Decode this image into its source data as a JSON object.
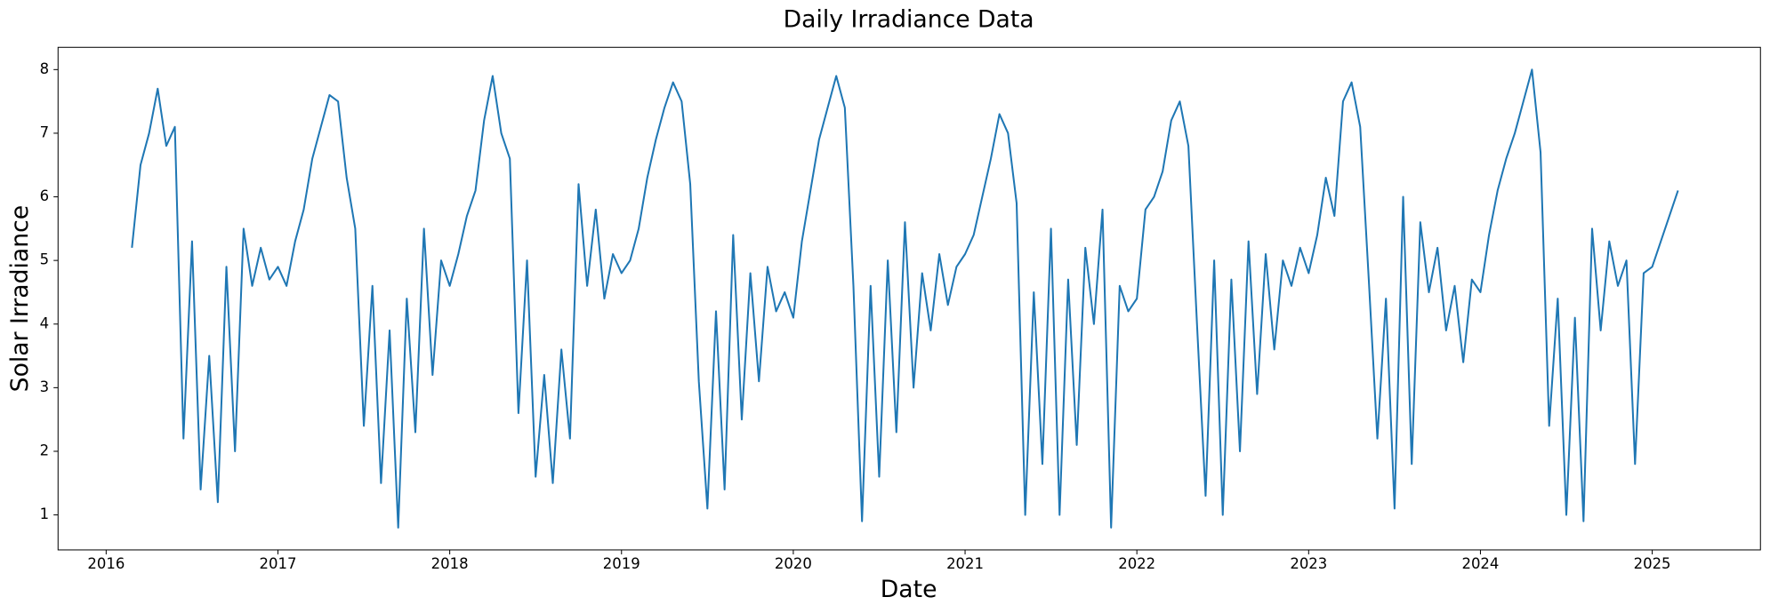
{
  "chart_data": {
    "type": "line",
    "title": "Daily Irradiance Data",
    "x_label": "Date",
    "y_label": "Solar Irradiance",
    "xlim": [
      2015.72,
      2025.63
    ],
    "ylim": [
      0.45,
      8.35
    ],
    "xticks": [
      2016,
      2017,
      2018,
      2019,
      2020,
      2021,
      2022,
      2023,
      2024,
      2025
    ],
    "yticks": [
      1,
      2,
      3,
      4,
      5,
      6,
      7,
      8
    ],
    "grid": false,
    "x": [
      2016.15,
      2016.2,
      2016.25,
      2016.3,
      2016.35,
      2016.4,
      2016.45,
      2016.5,
      2016.55,
      2016.6,
      2016.65,
      2016.7,
      2016.75,
      2016.8,
      2016.85,
      2016.9,
      2016.95,
      2017.0,
      2017.05,
      2017.1,
      2017.15,
      2017.2,
      2017.25,
      2017.3,
      2017.35,
      2017.4,
      2017.45,
      2017.5,
      2017.55,
      2017.6,
      2017.65,
      2017.7,
      2017.75,
      2017.8,
      2017.85,
      2017.9,
      2017.95,
      2018.0,
      2018.05,
      2018.1,
      2018.15,
      2018.2,
      2018.25,
      2018.3,
      2018.35,
      2018.4,
      2018.45,
      2018.5,
      2018.55,
      2018.6,
      2018.65,
      2018.7,
      2018.75,
      2018.8,
      2018.85,
      2018.9,
      2018.95,
      2019.0,
      2019.05,
      2019.1,
      2019.15,
      2019.2,
      2019.25,
      2019.3,
      2019.35,
      2019.4,
      2019.45,
      2019.5,
      2019.55,
      2019.6,
      2019.65,
      2019.7,
      2019.75,
      2019.8,
      2019.85,
      2019.9,
      2019.95,
      2020.0,
      2020.05,
      2020.1,
      2020.15,
      2020.2,
      2020.25,
      2020.3,
      2020.35,
      2020.4,
      2020.45,
      2020.5,
      2020.55,
      2020.6,
      2020.65,
      2020.7,
      2020.75,
      2020.8,
      2020.85,
      2020.9,
      2020.95,
      2021.0,
      2021.05,
      2021.1,
      2021.15,
      2021.2,
      2021.25,
      2021.3,
      2021.35,
      2021.4,
      2021.45,
      2021.5,
      2021.55,
      2021.6,
      2021.65,
      2021.7,
      2021.75,
      2021.8,
      2021.85,
      2021.9,
      2021.95,
      2022.0,
      2022.05,
      2022.1,
      2022.15,
      2022.2,
      2022.25,
      2022.3,
      2022.35,
      2022.4,
      2022.45,
      2022.5,
      2022.55,
      2022.6,
      2022.65,
      2022.7,
      2022.75,
      2022.8,
      2022.85,
      2022.9,
      2022.95,
      2023.0,
      2023.05,
      2023.1,
      2023.15,
      2023.2,
      2023.25,
      2023.3,
      2023.35,
      2023.4,
      2023.45,
      2023.5,
      2023.55,
      2023.6,
      2023.65,
      2023.7,
      2023.75,
      2023.8,
      2023.85,
      2023.9,
      2023.95,
      2024.0,
      2024.05,
      2024.1,
      2024.15,
      2024.2,
      2024.25,
      2024.3,
      2024.35,
      2024.4,
      2024.45,
      2024.5,
      2024.55,
      2024.6,
      2024.65,
      2024.7,
      2024.75,
      2024.8,
      2024.85,
      2024.9,
      2024.95,
      2025.0,
      2025.05,
      2025.1,
      2025.15
    ],
    "series": [
      {
        "name": "Solar Irradiance",
        "color": "#1f77b4",
        "values": [
          5.2,
          6.5,
          7.0,
          7.7,
          6.8,
          7.1,
          2.2,
          5.3,
          1.4,
          3.5,
          1.2,
          4.9,
          2.0,
          5.5,
          4.6,
          5.2,
          4.7,
          4.9,
          4.6,
          5.3,
          5.8,
          6.6,
          7.1,
          7.6,
          7.5,
          6.3,
          5.5,
          2.4,
          4.6,
          1.5,
          3.9,
          0.8,
          4.4,
          2.3,
          5.5,
          3.2,
          5.0,
          4.6,
          5.1,
          5.7,
          6.1,
          7.2,
          7.9,
          7.0,
          6.6,
          2.6,
          5.0,
          1.6,
          3.2,
          1.5,
          3.6,
          2.2,
          6.2,
          4.6,
          5.8,
          4.4,
          5.1,
          4.8,
          5.0,
          5.5,
          6.3,
          6.9,
          7.4,
          7.8,
          7.5,
          6.2,
          3.1,
          1.1,
          4.2,
          1.4,
          5.4,
          2.5,
          4.8,
          3.1,
          4.9,
          4.2,
          4.5,
          4.1,
          5.3,
          6.1,
          6.9,
          7.4,
          7.9,
          7.4,
          4.6,
          0.9,
          4.6,
          1.6,
          5.0,
          2.3,
          5.6,
          3.0,
          4.8,
          3.9,
          5.1,
          4.3,
          4.9,
          5.1,
          5.4,
          6.0,
          6.6,
          7.3,
          7.0,
          5.9,
          1.0,
          4.5,
          1.8,
          5.5,
          1.0,
          4.7,
          2.1,
          5.2,
          4.0,
          5.8,
          0.8,
          4.6,
          4.2,
          4.4,
          5.8,
          6.0,
          6.4,
          7.2,
          7.5,
          6.8,
          4.0,
          1.3,
          5.0,
          1.0,
          4.7,
          2.0,
          5.3,
          2.9,
          5.1,
          3.6,
          5.0,
          4.6,
          5.2,
          4.8,
          5.4,
          6.3,
          5.7,
          7.5,
          7.8,
          7.1,
          4.7,
          2.2,
          4.4,
          1.1,
          6.0,
          1.8,
          5.6,
          4.5,
          5.2,
          3.9,
          4.6,
          3.4,
          4.7,
          4.5,
          5.4,
          6.1,
          6.6,
          7.0,
          7.5,
          8.0,
          6.7,
          2.4,
          4.4,
          1.0,
          4.1,
          0.9,
          5.5,
          3.9,
          5.3,
          4.6,
          5.0,
          1.8,
          4.8,
          4.9,
          5.3,
          5.7,
          6.1
        ]
      }
    ]
  }
}
